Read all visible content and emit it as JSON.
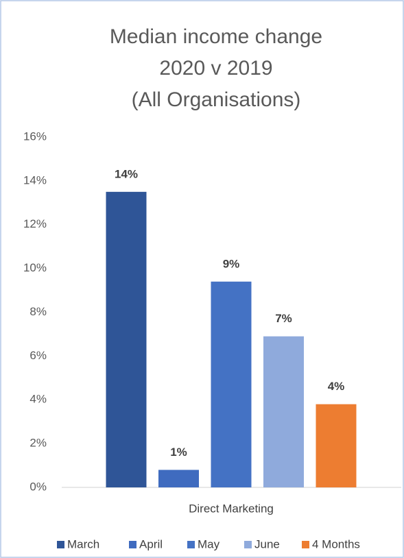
{
  "chart_data": {
    "type": "bar",
    "title": [
      "Median income change",
      "2020 v 2019",
      "(All Organisations)"
    ],
    "categories": [
      "Direct Marketing"
    ],
    "series": [
      {
        "name": "March",
        "color": "#2f5597",
        "values": [
          13.5
        ],
        "value_labels": [
          "14%"
        ]
      },
      {
        "name": "April",
        "color": "#3f6bbf",
        "values": [
          0.8
        ],
        "value_labels": [
          "1%"
        ]
      },
      {
        "name": "May",
        "color": "#4472c4",
        "values": [
          9.4
        ],
        "value_labels": [
          "9%"
        ]
      },
      {
        "name": "June",
        "color": "#8faadc",
        "values": [
          6.9
        ],
        "value_labels": [
          "7%"
        ]
      },
      {
        "name": "4 Months",
        "color": "#ed7d31",
        "values": [
          3.8
        ],
        "value_labels": [
          "4%"
        ]
      }
    ],
    "ylim": [
      0,
      16
    ],
    "yticks": [
      {
        "value": 0,
        "label": "0%"
      },
      {
        "value": 2,
        "label": "2%"
      },
      {
        "value": 4,
        "label": "4%"
      },
      {
        "value": 6,
        "label": "6%"
      },
      {
        "value": 8,
        "label": "8%"
      },
      {
        "value": 10,
        "label": "10%"
      },
      {
        "value": 12,
        "label": "12%"
      },
      {
        "value": 14,
        "label": "14%"
      },
      {
        "value": 16,
        "label": "16%"
      }
    ],
    "grid": false,
    "legend": "bottom"
  }
}
